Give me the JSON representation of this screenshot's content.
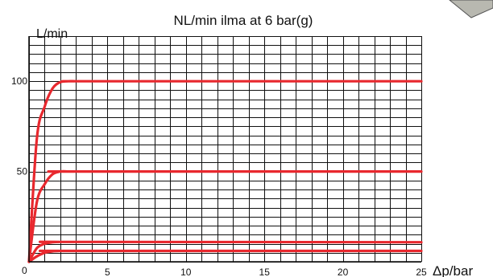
{
  "chart_data": {
    "type": "line",
    "title": "NL/min ilma at 6 bar(g)",
    "ylabel": "L/min",
    "xlabel": "Δp/bar",
    "xlim": [
      0,
      25
    ],
    "ylim": [
      0,
      125
    ],
    "xticks": [
      5,
      10,
      15,
      20,
      25
    ],
    "yticks": [
      50,
      100
    ],
    "origin_label": "0",
    "grid": true,
    "line_color": "#e8282e",
    "grid_color": "#111111",
    "series": [
      {
        "x": [
          0,
          0.5,
          1,
          1.5,
          2,
          2.5,
          3,
          4,
          25
        ],
        "values": [
          0,
          68,
          86,
          96,
          99.5,
          100,
          100,
          100,
          100
        ]
      },
      {
        "x": [
          0,
          0.5,
          1,
          1.5,
          2,
          2.5,
          3,
          25
        ],
        "values": [
          0,
          33,
          43,
          48.5,
          50,
          50,
          50,
          50
        ]
      },
      {
        "x": [
          0,
          0.5,
          1,
          1.5,
          2,
          2.5,
          25
        ],
        "values": [
          0,
          7.5,
          10,
          10.8,
          11,
          11,
          10.8
        ]
      },
      {
        "x": [
          0,
          0.5,
          1,
          1.5,
          2,
          2.5,
          25
        ],
        "values": [
          0,
          3,
          5,
          5.8,
          6,
          6,
          6
        ]
      }
    ]
  }
}
